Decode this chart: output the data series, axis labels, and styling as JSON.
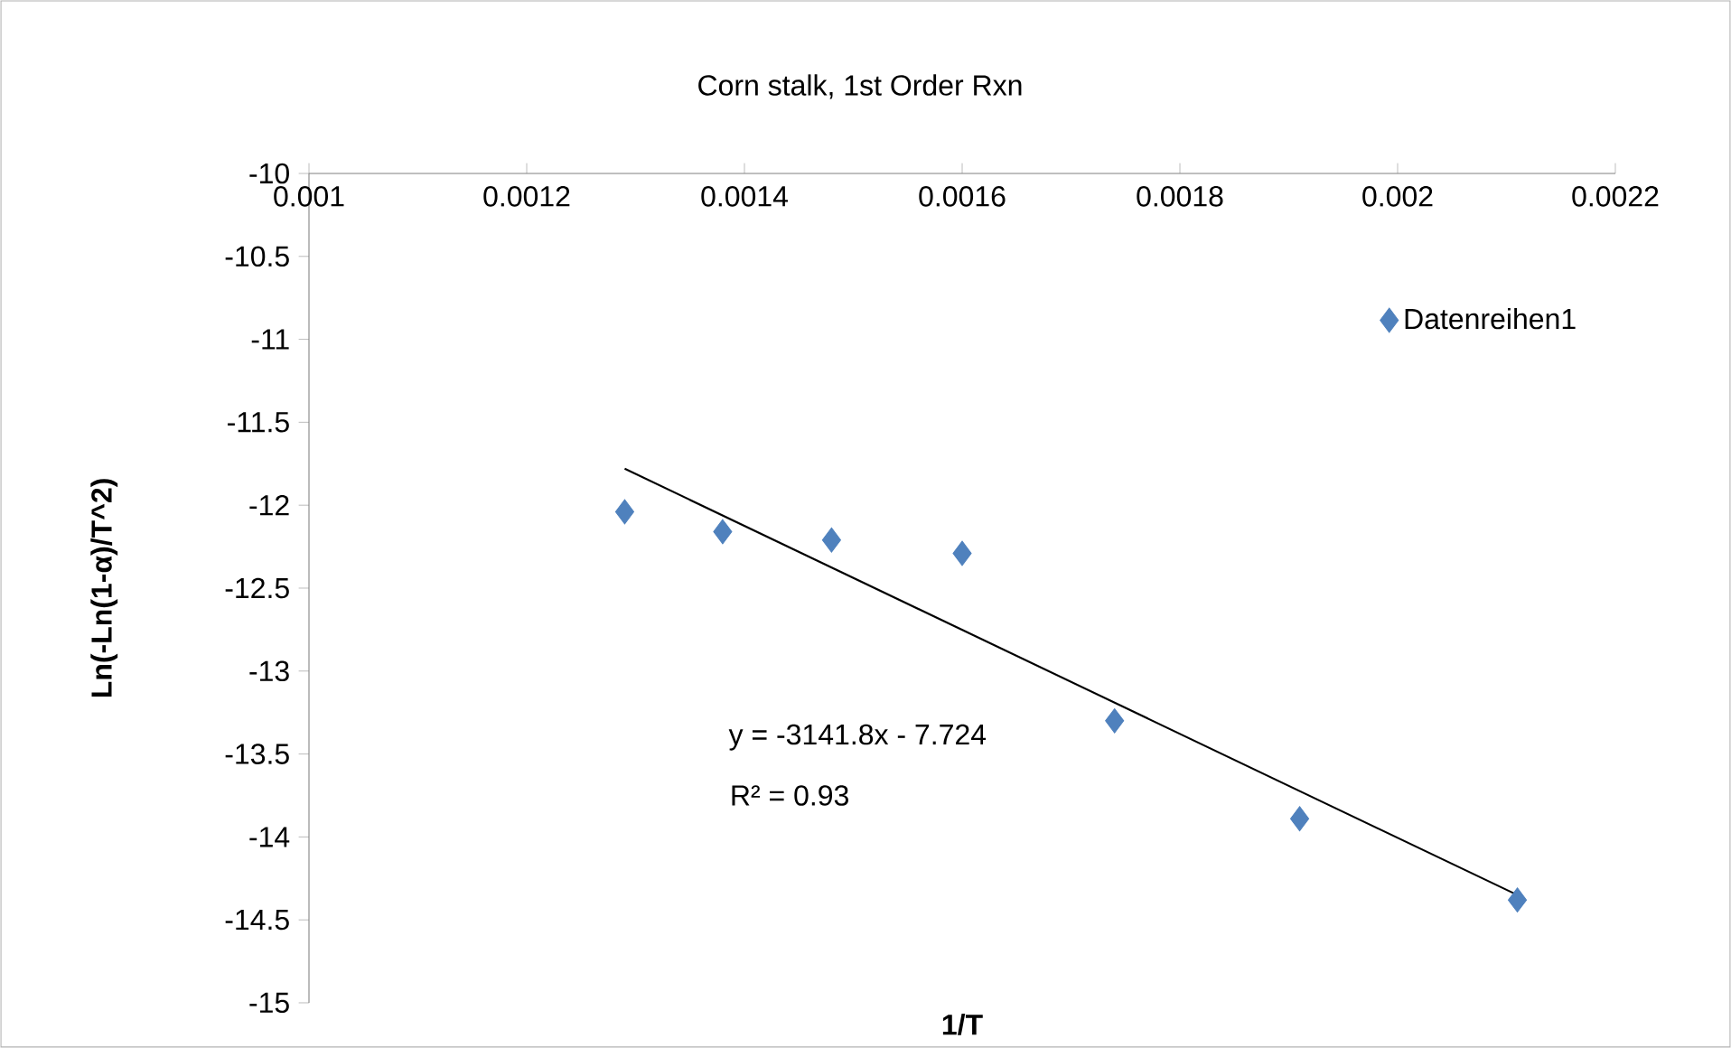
{
  "chart_data": {
    "type": "scatter",
    "title": "Corn stalk, 1st Order Rxn",
    "xlabel": "1/T",
    "ylabel": "Ln(-Ln(1-α)/T^2)",
    "xlim": [
      0.001,
      0.0022
    ],
    "xticks": [
      0.001,
      0.0012,
      0.0014,
      0.0016,
      0.0018,
      0.002,
      0.0022
    ],
    "ylim": [
      -15,
      -10
    ],
    "yticks": [
      -15,
      -14.5,
      -14,
      -13.5,
      -13,
      -12.5,
      -12,
      -11.5,
      -11,
      -10.5,
      -10
    ],
    "marker": "diamond",
    "legend": "top right",
    "grid": false,
    "annotations": [
      "y = -3141.8x - 7.724",
      "R² = 0.93"
    ],
    "series": [
      {
        "name": "Datenreihen1",
        "color": "#4f81bd",
        "x": [
          0.00129,
          0.00138,
          0.00148,
          0.0016,
          0.00174,
          0.00191,
          0.00211
        ],
        "values": [
          -12.04,
          -12.16,
          -12.21,
          -12.29,
          -13.3,
          -13.89,
          -14.38
        ]
      },
      {
        "type": "line",
        "color": "#000000",
        "marker": "none",
        "x": [
          0.00129,
          0.00211
        ],
        "values": [
          -11.78,
          -14.35
        ]
      }
    ]
  }
}
